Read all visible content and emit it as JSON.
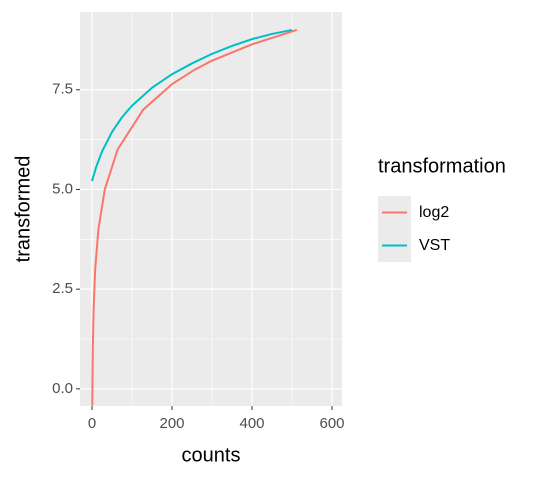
{
  "chart_data": {
    "type": "line",
    "xlabel": "counts",
    "ylabel": "transformed",
    "legend_title": "transformation",
    "legend_position": "right",
    "series": [
      {
        "name": "log2",
        "color": "#F8766D",
        "x": [
          0.75,
          1,
          2,
          4,
          8,
          16,
          32,
          64,
          128,
          200,
          256,
          300,
          400,
          512
        ],
        "values": [
          -0.42,
          0,
          1,
          2,
          3,
          4,
          5,
          6,
          7,
          7.64,
          8,
          8.23,
          8.64,
          9
        ]
      },
      {
        "name": "VST",
        "color": "#00BFC4",
        "x": [
          0,
          10,
          25,
          50,
          75,
          100,
          150,
          200,
          250,
          300,
          350,
          400,
          450,
          500
        ],
        "values": [
          5.21,
          5.55,
          5.95,
          6.44,
          6.81,
          7.1,
          7.55,
          7.89,
          8.16,
          8.4,
          8.6,
          8.77,
          8.9,
          9.0
        ]
      }
    ],
    "xlim": [
      -30,
      625
    ],
    "xticks": [
      0,
      200,
      400,
      600
    ],
    "ylim": [
      -0.43,
      9.45
    ],
    "yticks": [
      {
        "value": 0,
        "label": "0.0"
      },
      {
        "value": 2.5,
        "label": "2.5"
      },
      {
        "value": 5,
        "label": "5.0"
      },
      {
        "value": 7.5,
        "label": "7.5"
      }
    ],
    "grid": true
  }
}
